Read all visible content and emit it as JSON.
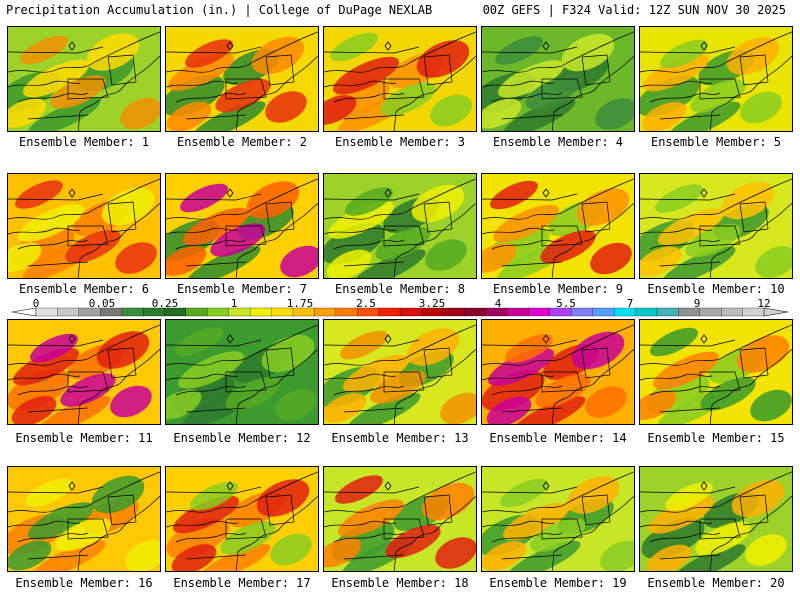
{
  "header": {
    "title_left": "Precipitation Accumulation (in.) | College of DuPage NEXLAB",
    "title_right": "00Z GEFS | F324 Valid: 12Z SUN NOV 30 2025"
  },
  "colorbar": {
    "tick_labels": [
      "0",
      "0.05",
      "0.25",
      "1",
      "1.75",
      "2.5",
      "3.25",
      "4",
      "5.5",
      "7",
      "9",
      "12"
    ],
    "colors": [
      "#e0e0e0",
      "#c8c8c8",
      "#a0a0a0",
      "#787878",
      "#3c8c3c",
      "#2e7a2e",
      "#1e6e1e",
      "#55aa22",
      "#88cc22",
      "#c8e628",
      "#f0f000",
      "#ffdc00",
      "#ffbe00",
      "#ffa000",
      "#ff7a00",
      "#ff5000",
      "#f02000",
      "#d81010",
      "#c00000",
      "#a00018",
      "#880030",
      "#a00060",
      "#c8009a",
      "#e000d0",
      "#b040ff",
      "#8080ff",
      "#50a0ff",
      "#00e0f0",
      "#00c8c8",
      "#40b4b4",
      "#909090",
      "#a8a8a8",
      "#bcbcbc",
      "#d0d0d0"
    ]
  },
  "members": [
    {
      "label": "Ensemble Member: 1",
      "base": "#9cd22a",
      "blobs": [
        "#3c9a2e",
        "#ffdc00",
        "#f09000"
      ]
    },
    {
      "label": "Ensemble Member: 2",
      "base": "#f5d800",
      "blobs": [
        "#2e8c2e",
        "#ff8a00",
        "#e83010"
      ]
    },
    {
      "label": "Ensemble Member: 3",
      "base": "#f2d600",
      "blobs": [
        "#ff9000",
        "#e02010",
        "#88cc22"
      ]
    },
    {
      "label": "Ensemble Member: 4",
      "base": "#6cb82a",
      "blobs": [
        "#2e7a2e",
        "#c8e628",
        "#3c8c3c"
      ]
    },
    {
      "label": "Ensemble Member: 5",
      "base": "#e8e400",
      "blobs": [
        "#3c9a2e",
        "#ffb000",
        "#88cc22"
      ]
    },
    {
      "label": "Ensemble Member: 6",
      "base": "#ffc000",
      "blobs": [
        "#ff8000",
        "#f0f000",
        "#e83010"
      ]
    },
    {
      "label": "Ensemble Member: 7",
      "base": "#ffd000",
      "blobs": [
        "#2e8c2e",
        "#ff6000",
        "#c8009a"
      ]
    },
    {
      "label": "Ensemble Member: 8",
      "base": "#9cd22a",
      "blobs": [
        "#2e7a2e",
        "#f0f000",
        "#55aa22"
      ]
    },
    {
      "label": "Ensemble Member: 9",
      "base": "#f2e400",
      "blobs": [
        "#88cc22",
        "#ff9000",
        "#e02010"
      ]
    },
    {
      "label": "Ensemble Member: 10",
      "base": "#d8e820",
      "blobs": [
        "#3c9a2e",
        "#ffc000",
        "#88cc22"
      ]
    },
    {
      "label": "Ensemble Member: 11",
      "base": "#ffc800",
      "blobs": [
        "#ff7000",
        "#e02010",
        "#c8009a"
      ]
    },
    {
      "label": "Ensemble Member: 12",
      "base": "#3c9a2e",
      "blobs": [
        "#2e7a2e",
        "#88cc22",
        "#55aa22"
      ]
    },
    {
      "label": "Ensemble Member: 13",
      "base": "#d8e820",
      "blobs": [
        "#3c9a2e",
        "#ffb000",
        "#f09000"
      ]
    },
    {
      "label": "Ensemble Member: 14",
      "base": "#ffb000",
      "blobs": [
        "#e02010",
        "#c8009a",
        "#ff7000"
      ]
    },
    {
      "label": "Ensemble Member: 15",
      "base": "#f2e400",
      "blobs": [
        "#88cc22",
        "#ff8000",
        "#3c9a2e"
      ]
    },
    {
      "label": "Ensemble Member: 16",
      "base": "#ffc800",
      "blobs": [
        "#ff8000",
        "#3c9a2e",
        "#f0f000"
      ]
    },
    {
      "label": "Ensemble Member: 17",
      "base": "#ffd000",
      "blobs": [
        "#ff8000",
        "#e02010",
        "#88cc22"
      ]
    },
    {
      "label": "Ensemble Member: 18",
      "base": "#c8e628",
      "blobs": [
        "#3c9a2e",
        "#ff8000",
        "#e02010"
      ]
    },
    {
      "label": "Ensemble Member: 19",
      "base": "#c8e628",
      "blobs": [
        "#3c9a2e",
        "#ffb000",
        "#88cc22"
      ]
    },
    {
      "label": "Ensemble Member: 20",
      "base": "#9cd22a",
      "blobs": [
        "#2e7a2e",
        "#ffb000",
        "#f0f000"
      ]
    }
  ]
}
